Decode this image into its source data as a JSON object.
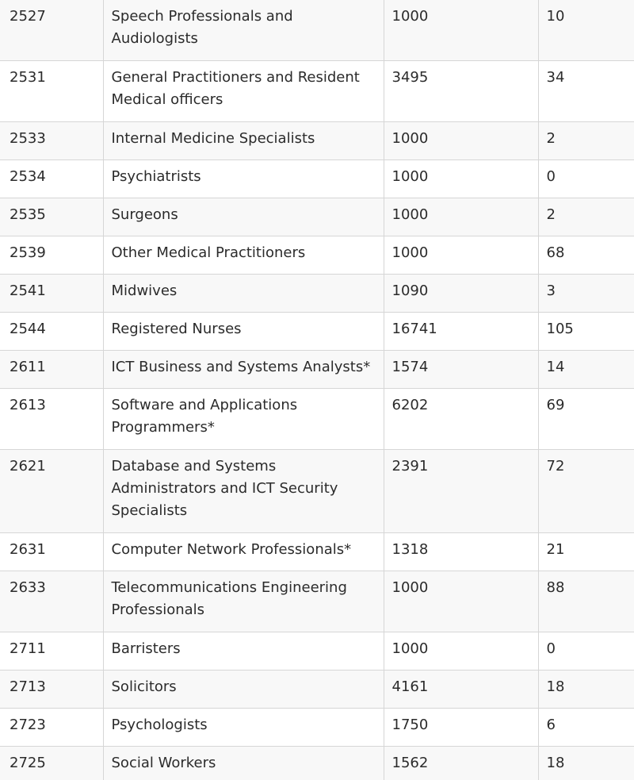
{
  "table": {
    "rows": [
      {
        "code": "2527",
        "occupation": "Speech Professionals and Audiologists",
        "ceiling": "1000",
        "invitations": "10"
      },
      {
        "code": "2531",
        "occupation": "General Practitioners and Resident Medical officers",
        "ceiling": "3495",
        "invitations": "34"
      },
      {
        "code": "2533",
        "occupation": "Internal Medicine Specialists",
        "ceiling": "1000",
        "invitations": "2"
      },
      {
        "code": "2534",
        "occupation": "Psychiatrists",
        "ceiling": "1000",
        "invitations": "0"
      },
      {
        "code": "2535",
        "occupation": "Surgeons",
        "ceiling": "1000",
        "invitations": "2"
      },
      {
        "code": "2539",
        "occupation": "Other Medical Practitioners",
        "ceiling": "1000",
        "invitations": "68"
      },
      {
        "code": "2541",
        "occupation": "Midwives",
        "ceiling": "1090",
        "invitations": "3"
      },
      {
        "code": "2544",
        "occupation": "Registered Nurses",
        "ceiling": "16741",
        "invitations": "105"
      },
      {
        "code": "2611",
        "occupation": "ICT Business and Systems Analysts*",
        "ceiling": "1574",
        "invitations": "14"
      },
      {
        "code": "2613",
        "occupation": "Software and Applications Programmers*",
        "ceiling": "6202",
        "invitations": "69"
      },
      {
        "code": "2621",
        "occupation": "Database and Systems Administrators and ICT Security Specialists",
        "ceiling": "2391",
        "invitations": "72"
      },
      {
        "code": "2631",
        "occupation": "Computer Network Professionals*",
        "ceiling": "1318",
        "invitations": "21"
      },
      {
        "code": "2633",
        "occupation": "Telecommunications Engineering Professionals",
        "ceiling": "1000",
        "invitations": "88"
      },
      {
        "code": "2711",
        "occupation": "Barristers",
        "ceiling": "1000",
        "invitations": "0"
      },
      {
        "code": "2713",
        "occupation": "Solicitors",
        "ceiling": "4161",
        "invitations": "18"
      },
      {
        "code": "2723",
        "occupation": "Psychologists",
        "ceiling": "1750",
        "invitations": "6"
      },
      {
        "code": "2725",
        "occupation": "Social Workers",
        "ceiling": "1562",
        "invitations": "18"
      }
    ]
  }
}
